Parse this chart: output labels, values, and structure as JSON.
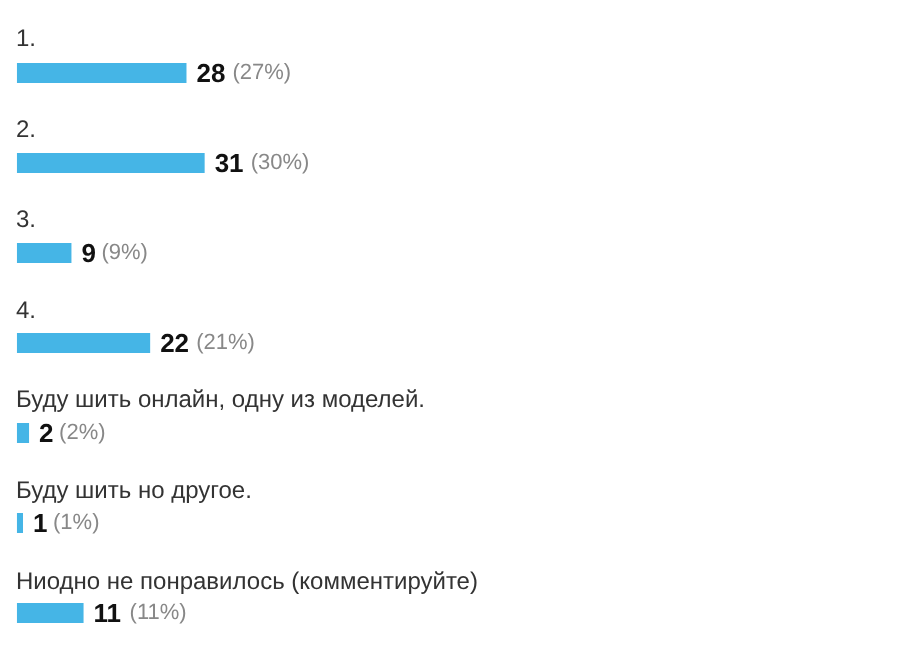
{
  "chart_data": {
    "type": "bar",
    "orientation": "horizontal",
    "categories": [
      "1.",
      "2.",
      "3.",
      "4.",
      "Буду шить онлайн, одну из моделей.",
      "Буду шить но другое.",
      "Ниодно не понравилось (комментируйте)"
    ],
    "values": [
      28,
      31,
      9,
      22,
      2,
      1,
      11
    ],
    "color": "#45b5e6",
    "value_labels": [
      "28 (27%)",
      "31 (30%)",
      "9 (9%)",
      "22 (21%)",
      "2 (2%)",
      "1 (1%)",
      "11 (11%)"
    ]
  }
}
